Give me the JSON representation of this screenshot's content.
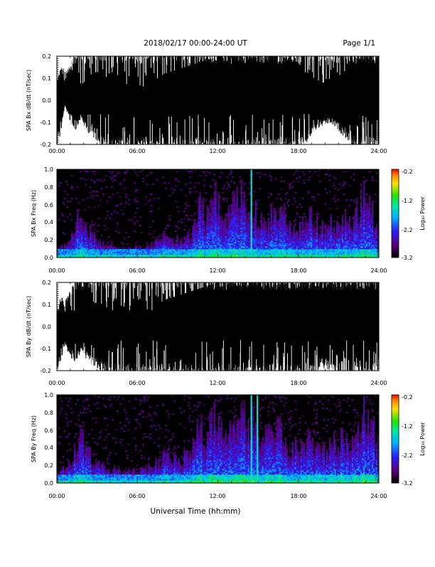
{
  "header": {
    "date_range": "2018/02/17  00:00-24:00 UT",
    "page": "Page 1/1"
  },
  "footer": {
    "xlabel": "Universal Time (hh:mm)"
  },
  "chart_data": [
    {
      "type": "line",
      "ylabel": "SPA Bx dB/dt (nT/sec)",
      "xlim": [
        0,
        24
      ],
      "ylim": [
        -0.2,
        0.2
      ],
      "x_ticks": [
        "00:00",
        "06:00",
        "12:00",
        "18:00",
        "24:00"
      ],
      "y_ticks": [
        "-0.2",
        "-0.1",
        "0.0",
        "0.1",
        "0.2"
      ],
      "envelope": {
        "x": [
          0,
          0.3,
          0.6,
          1.0,
          1.4,
          1.8,
          2.2,
          2.6,
          3.0,
          3.5,
          4.0,
          4.5,
          5.0,
          5.5,
          6.0,
          6.6,
          7.0,
          7.5,
          8,
          9,
          10,
          11,
          12,
          13,
          14,
          15,
          16,
          17,
          18,
          18.6,
          19.2,
          19.8,
          20.4,
          21,
          21.6,
          22.2,
          23,
          24
        ],
        "upper": [
          0.08,
          0.13,
          0.12,
          0.14,
          0.2,
          0.2,
          0.2,
          0.2,
          0.2,
          0.2,
          0.2,
          0.2,
          0.2,
          0.2,
          0.2,
          0.2,
          0.2,
          0.2,
          0.2,
          0.2,
          0.2,
          0.2,
          0.2,
          0.2,
          0.2,
          0.2,
          0.2,
          0.2,
          0.2,
          0.2,
          0.2,
          0.2,
          0.2,
          0.2,
          0.2,
          0.2,
          0.2,
          0.2
        ],
        "lower": [
          -0.2,
          -0.13,
          -0.02,
          -0.09,
          -0.12,
          -0.07,
          -0.12,
          -0.14,
          -0.16,
          -0.19,
          -0.2,
          -0.2,
          -0.2,
          -0.2,
          -0.2,
          -0.2,
          -0.2,
          -0.2,
          -0.2,
          -0.2,
          -0.2,
          -0.2,
          -0.2,
          -0.2,
          -0.2,
          -0.2,
          -0.2,
          -0.2,
          -0.2,
          -0.17,
          -0.12,
          -0.1,
          -0.09,
          -0.12,
          -0.15,
          -0.2,
          -0.2,
          -0.2
        ],
        "inner_upper": [
          0.06,
          0.1,
          0.09,
          0.05,
          0.03,
          0.06,
          0.1,
          0.12,
          0.13,
          0.11,
          0.08,
          0.06,
          0.05,
          0.03,
          0.02,
          0.01,
          0.06,
          0.1,
          0.12,
          0.14,
          0.16,
          0.18,
          0.2,
          0.2,
          0.2,
          0.2,
          0.2,
          0.2,
          0.17,
          0.12,
          0.1,
          0.08,
          0.09,
          0.11,
          0.14,
          0.18,
          0.2,
          0.2
        ]
      }
    },
    {
      "type": "heatmap",
      "ylabel": "SPA Bx Freq (Hz)",
      "xlim": [
        0,
        24
      ],
      "ylim": [
        0,
        1.0
      ],
      "x_ticks": [
        "00:00",
        "06:00",
        "12:00",
        "18:00",
        "24:00"
      ],
      "y_ticks": [
        "0.0",
        "0.2",
        "0.4",
        "0.6",
        "0.8",
        "1.0"
      ],
      "colorbar": {
        "label": "Log₁₀ Power",
        "range": [
          -3.2,
          -0.2
        ],
        "ticks": [
          "-0.2",
          "-1.2",
          "-2.2",
          "-3.2"
        ]
      },
      "activity": {
        "x": [
          0,
          1,
          1.7,
          2.2,
          3,
          4,
          5,
          6,
          7,
          8,
          9,
          10,
          10.6,
          11.2,
          11.8,
          12.5,
          13.2,
          13.8,
          14.2,
          14.6,
          15,
          15.8,
          16.5,
          17.3,
          18,
          19,
          20,
          21,
          22,
          22.7,
          23,
          23.5,
          24
        ],
        "height": [
          0.1,
          0.2,
          0.55,
          0.4,
          0.2,
          0.15,
          0.12,
          0.12,
          0.15,
          0.28,
          0.22,
          0.3,
          0.65,
          0.55,
          0.8,
          0.45,
          0.7,
          0.85,
          0.6,
          0.75,
          0.45,
          0.55,
          0.65,
          0.45,
          0.4,
          0.5,
          0.35,
          0.5,
          0.45,
          0.7,
          0.9,
          0.6,
          0.4
        ]
      },
      "lines": [
        {
          "x": 14.5,
          "fmax": 1.0
        }
      ]
    },
    {
      "type": "line",
      "ylabel": "SPA By dB/dt (nT/sec)",
      "xlim": [
        0,
        24
      ],
      "ylim": [
        -0.2,
        0.2
      ],
      "x_ticks": [
        "00:00",
        "06:00",
        "12:00",
        "18:00",
        "24:00"
      ],
      "y_ticks": [
        "-0.2",
        "-0.1",
        "0.0",
        "0.1",
        "0.2"
      ],
      "envelope": {
        "x": [
          0,
          0.3,
          0.6,
          1.0,
          1.4,
          1.8,
          2.2,
          2.6,
          3.0,
          3.5,
          4.0,
          4.5,
          5.0,
          5.5,
          6.0,
          6.6,
          7.0,
          7.5,
          8,
          9,
          10,
          11,
          12,
          13,
          14,
          15,
          16,
          17,
          18,
          18.6,
          19.2,
          19.8,
          20.4,
          21,
          21.6,
          22.2,
          23,
          24
        ],
        "upper": [
          0.06,
          0.12,
          0.1,
          0.14,
          0.2,
          0.2,
          0.2,
          0.2,
          0.2,
          0.2,
          0.2,
          0.2,
          0.2,
          0.2,
          0.2,
          0.2,
          0.2,
          0.2,
          0.2,
          0.2,
          0.2,
          0.2,
          0.2,
          0.2,
          0.2,
          0.2,
          0.2,
          0.2,
          0.2,
          0.2,
          0.2,
          0.2,
          0.2,
          0.2,
          0.2,
          0.2,
          0.2,
          0.2
        ],
        "lower": [
          -0.2,
          -0.14,
          -0.08,
          -0.12,
          -0.14,
          -0.1,
          -0.13,
          -0.15,
          -0.17,
          -0.18,
          -0.2,
          -0.2,
          -0.2,
          -0.2,
          -0.2,
          -0.2,
          -0.2,
          -0.2,
          -0.2,
          -0.2,
          -0.2,
          -0.2,
          -0.2,
          -0.2,
          -0.2,
          -0.2,
          -0.2,
          -0.2,
          -0.2,
          -0.2,
          -0.18,
          -0.16,
          -0.17,
          -0.19,
          -0.2,
          -0.2,
          -0.2,
          -0.2
        ],
        "inner_upper": [
          0.05,
          0.09,
          0.07,
          0.05,
          0.04,
          0.06,
          0.09,
          0.1,
          0.11,
          0.1,
          0.07,
          0.04,
          0.02,
          0.0,
          -0.01,
          0.01,
          0.05,
          0.1,
          0.12,
          0.14,
          0.16,
          0.18,
          0.2,
          0.2,
          0.2,
          0.2,
          0.2,
          0.2,
          0.2,
          0.2,
          0.2,
          0.2,
          0.2,
          0.2,
          0.2,
          0.2,
          0.2,
          0.2
        ]
      }
    },
    {
      "type": "heatmap",
      "ylabel": "SPA By Freq (Hz)",
      "xlim": [
        0,
        24
      ],
      "ylim": [
        0,
        1.0
      ],
      "x_ticks": [
        "00:00",
        "06:00",
        "12:00",
        "18:00",
        "24:00"
      ],
      "y_ticks": [
        "0.0",
        "0.2",
        "0.4",
        "0.6",
        "0.8",
        "1.0"
      ],
      "colorbar": {
        "label": "Log₁₀ Power",
        "range": [
          -3.2,
          -0.2
        ],
        "ticks": [
          "-0.2",
          "-1.2",
          "-2.2",
          "-3.2"
        ]
      },
      "activity": {
        "x": [
          0,
          1,
          1.7,
          2.2,
          3,
          4,
          5,
          6,
          7,
          8,
          9,
          10,
          10.6,
          11.2,
          11.8,
          12.5,
          13.2,
          13.8,
          14.2,
          14.6,
          15,
          15.8,
          16.5,
          17.3,
          18,
          19,
          20,
          21,
          22,
          22.7,
          23,
          23.5,
          24
        ],
        "height": [
          0.12,
          0.25,
          0.6,
          0.45,
          0.22,
          0.18,
          0.15,
          0.15,
          0.2,
          0.35,
          0.28,
          0.4,
          0.7,
          0.6,
          0.85,
          0.5,
          0.75,
          0.9,
          0.65,
          0.8,
          0.55,
          0.6,
          0.7,
          0.5,
          0.45,
          0.55,
          0.4,
          0.55,
          0.5,
          0.8,
          0.95,
          0.7,
          0.45
        ]
      },
      "lines": [
        {
          "x": 14.5,
          "fmax": 1.0
        },
        {
          "x": 14.95,
          "fmax": 1.0
        }
      ]
    }
  ]
}
